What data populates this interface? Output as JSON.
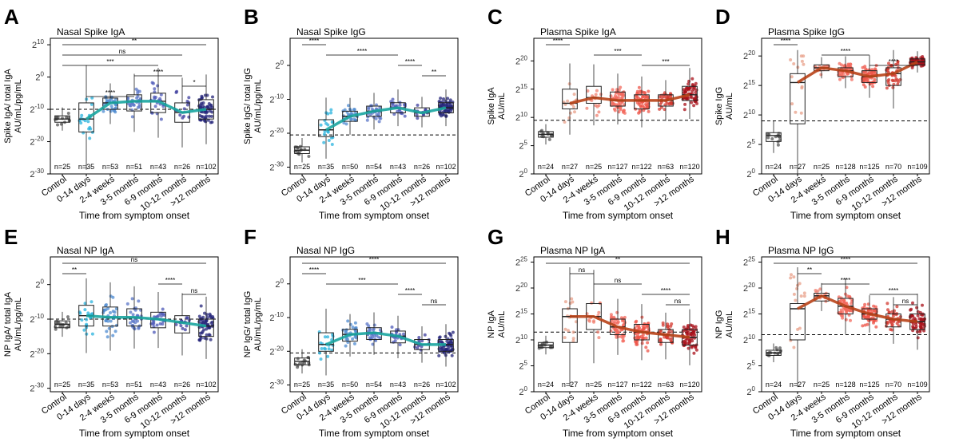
{
  "categories": [
    "Control",
    "0-14 days",
    "2-4 weeks",
    "3-5 months",
    "6-9 months",
    "10-12 months",
    ">12 months"
  ],
  "xlabel": "Time from symptom onset",
  "colors": {
    "control": "#555555",
    "blue": [
      "#555555",
      "#29b3dd",
      "#4f8bd0",
      "#5a75c7",
      "#4d5ab8",
      "#3d3e9e",
      "#24247a"
    ],
    "red": [
      "#555555",
      "#e8a08a",
      "#f08070",
      "#f36a5e",
      "#ee5448",
      "#d33a30",
      "#a8101a"
    ],
    "blue_trend": "#1aa5a0",
    "red_trend": "#b84318"
  },
  "chart_data": [
    {
      "type": "box",
      "panel_letter": "A",
      "title": "Nasal Spike IgA",
      "ylabel_lines": [
        "Spike IgA/ total IgA",
        "AU/mL/pg/mL"
      ],
      "ylim": [
        -30,
        12
      ],
      "yticks": [
        10,
        0,
        -10,
        -20,
        -30
      ],
      "tick_base": "2",
      "palette": "blue",
      "threshold": -10,
      "medians": [
        -13,
        -13,
        -8,
        -7.5,
        -7.5,
        -11,
        -10
      ],
      "q1": [
        -14,
        -17,
        -10,
        -10.5,
        -11,
        -14,
        -13
      ],
      "q3": [
        -12,
        -8,
        -6.5,
        -5.5,
        -5,
        -8,
        -7
      ],
      "ns": [
        "n=25",
        "n=35",
        "n=53",
        "n=51",
        "n=43",
        "n=26",
        "n=102"
      ],
      "brackets": [
        {
          "from": 0,
          "to": 6,
          "label": "**"
        },
        {
          "from": 0,
          "to": 5,
          "label": "ns"
        },
        {
          "from": 0,
          "to": 4,
          "label": "***"
        },
        {
          "from": 3,
          "to": 5,
          "label": "****"
        },
        {
          "from": 5,
          "to": 6,
          "label": "*"
        },
        {
          "from": 1,
          "to": 3,
          "label": "****"
        }
      ]
    },
    {
      "type": "box",
      "panel_letter": "B",
      "title": "Nasal Spike IgG",
      "ylabel_lines": [
        "Spike IgG/ total IgG",
        "AU/mL/pg/mL"
      ],
      "ylim": [
        -32,
        8
      ],
      "yticks": [
        0,
        -10,
        -20,
        -30
      ],
      "tick_base": "2",
      "palette": "blue",
      "threshold": -20.5,
      "medians": [
        -25,
        -19,
        -15,
        -13.5,
        -12.5,
        -14,
        -12.5
      ],
      "q1": [
        -26,
        -21,
        -16.5,
        -15,
        -14,
        -15,
        -14
      ],
      "q3": [
        -24,
        -16,
        -13.5,
        -12,
        -11,
        -12.5,
        -11
      ],
      "ns": [
        "n=25",
        "n=35",
        "n=50",
        "n=54",
        "n=43",
        "n=26",
        "n=102"
      ],
      "brackets": [
        {
          "from": 0,
          "to": 1,
          "label": "****"
        },
        {
          "from": 1,
          "to": 4,
          "label": "****"
        },
        {
          "from": 4,
          "to": 5,
          "label": "****"
        },
        {
          "from": 5,
          "to": 6,
          "label": "**"
        }
      ]
    },
    {
      "type": "box",
      "panel_letter": "C",
      "title": "Plasma Spike IgA",
      "ylabel_lines": [
        "Spike IgA",
        "AU/mL"
      ],
      "ylim": [
        0,
        24
      ],
      "yticks": [
        20,
        15,
        10,
        5,
        0
      ],
      "tick_base": "2",
      "palette": "red",
      "threshold": 9.5,
      "medians": [
        7,
        12.5,
        13.5,
        13,
        13,
        13,
        14
      ],
      "q1": [
        6.5,
        11.5,
        12.5,
        12,
        11.5,
        12,
        13
      ],
      "q3": [
        7.5,
        15,
        15.5,
        14.5,
        14,
        14,
        15.5
      ],
      "ns": [
        "n=24",
        "n=27",
        "n=25",
        "n=127",
        "n=122",
        "n=63",
        "n=120"
      ],
      "brackets": [
        {
          "from": 0,
          "to": 1,
          "label": "****"
        },
        {
          "from": 2,
          "to": 4,
          "label": "***"
        },
        {
          "from": 4,
          "to": 6,
          "label": "***"
        }
      ]
    },
    {
      "type": "box",
      "panel_letter": "D",
      "title": "Plasma Spike IgG",
      "ylabel_lines": [
        "Spike IgG",
        "AU/mL"
      ],
      "ylim": [
        0,
        23
      ],
      "yticks": [
        20,
        15,
        10,
        5,
        0
      ],
      "tick_base": "2",
      "palette": "red",
      "threshold": 9,
      "medians": [
        6.5,
        15.5,
        18,
        17.5,
        16.5,
        17,
        19
      ],
      "q1": [
        5.5,
        8.5,
        17.5,
        16.5,
        15.5,
        15,
        18.5
      ],
      "q3": [
        7,
        17,
        18.5,
        18,
        17.5,
        18,
        19.5
      ],
      "ns": [
        "n=24",
        "n=27",
        "n=25",
        "n=128",
        "n=125",
        "n=70",
        "n=109"
      ],
      "brackets": [
        {
          "from": 0,
          "to": 1,
          "label": "****"
        },
        {
          "from": 2,
          "to": 4,
          "label": "****"
        },
        {
          "from": 4,
          "to": 6,
          "label": "****"
        }
      ]
    },
    {
      "type": "box",
      "panel_letter": "E",
      "title": "Nasal NP IgA",
      "ylabel_lines": [
        "NP IgA/ total IgA",
        "AU/mL/pg/mL"
      ],
      "ylim": [
        -31,
        8
      ],
      "yticks": [
        0,
        -10,
        -20,
        -30
      ],
      "tick_base": "2",
      "palette": "blue",
      "threshold": -10,
      "medians": [
        -11.5,
        -9,
        -9.5,
        -9.5,
        -10,
        -11,
        -12
      ],
      "q1": [
        -12.5,
        -12,
        -12,
        -12,
        -12.5,
        -14,
        -15
      ],
      "q3": [
        -10.5,
        -6,
        -6.5,
        -7,
        -8,
        -9,
        -10
      ],
      "ns": [
        "n=25",
        "n=35",
        "n=53",
        "n=51",
        "n=43",
        "n=26",
        "n=102"
      ],
      "brackets": [
        {
          "from": 0,
          "to": 6,
          "label": "ns"
        },
        {
          "from": 0,
          "to": 1,
          "label": "**"
        },
        {
          "from": 4,
          "to": 5,
          "label": "****"
        },
        {
          "from": 5,
          "to": 6,
          "label": "ns"
        }
      ]
    },
    {
      "type": "box",
      "panel_letter": "F",
      "title": "Nasal NP IgG",
      "ylabel_lines": [
        "NP IgG/ total IgG",
        "AU/mL/pg/mL"
      ],
      "ylim": [
        -32,
        8
      ],
      "yticks": [
        0,
        -10,
        -20,
        -30
      ],
      "tick_base": "2",
      "palette": "blue",
      "threshold": -20.5,
      "medians": [
        -23,
        -18,
        -15,
        -14.5,
        -15.5,
        -18,
        -18
      ],
      "q1": [
        -24,
        -20,
        -17,
        -16.5,
        -17.5,
        -19.5,
        -20
      ],
      "q3": [
        -22,
        -14.5,
        -13.5,
        -13,
        -14,
        -16.5,
        -16.5
      ],
      "ns": [
        "n=25",
        "n=35",
        "n=50",
        "n=54",
        "n=43",
        "n=26",
        "n=102"
      ],
      "brackets": [
        {
          "from": 0,
          "to": 6,
          "label": "****"
        },
        {
          "from": 0,
          "to": 1,
          "label": "****"
        },
        {
          "from": 1,
          "to": 4,
          "label": "***"
        },
        {
          "from": 4,
          "to": 5,
          "label": "****"
        },
        {
          "from": 5,
          "to": 6,
          "label": "ns"
        }
      ]
    },
    {
      "type": "box",
      "panel_letter": "G",
      "title": "Plasma NP IgA",
      "ylabel_lines": [
        "NP IgA",
        "AU/mL"
      ],
      "ylim": [
        0,
        26
      ],
      "yticks": [
        25,
        20,
        15,
        10,
        5,
        0
      ],
      "tick_base": "2",
      "palette": "red",
      "threshold": 11.5,
      "medians": [
        9,
        14.5,
        14.5,
        12.5,
        11.5,
        11,
        10.5
      ],
      "q1": [
        8.5,
        9.5,
        12,
        11,
        10,
        9.5,
        9
      ],
      "q3": [
        9.5,
        16,
        17,
        14,
        13,
        12,
        12
      ],
      "ns": [
        "n=24",
        "n=27",
        "n=25",
        "n=127",
        "n=122",
        "n=63",
        "n=120"
      ],
      "brackets": [
        {
          "from": 0,
          "to": 6,
          "label": "**"
        },
        {
          "from": 1,
          "to": 2,
          "label": "ns"
        },
        {
          "from": 2,
          "to": 4,
          "label": "ns"
        },
        {
          "from": 4,
          "to": 6,
          "label": "****"
        },
        {
          "from": 5,
          "to": 6,
          "label": "ns"
        }
      ]
    },
    {
      "type": "box",
      "panel_letter": "H",
      "title": "Plasma NP IgG",
      "ylabel_lines": [
        "NP IgG",
        "AU/mL"
      ],
      "ylim": [
        0,
        26
      ],
      "yticks": [
        25,
        20,
        15,
        10,
        5,
        0
      ],
      "tick_base": "2",
      "palette": "red",
      "threshold": 11,
      "medians": [
        7.5,
        16,
        18.5,
        16.5,
        15,
        14,
        13.5
      ],
      "q1": [
        7,
        10,
        17.5,
        15,
        14,
        12.5,
        12
      ],
      "q3": [
        8,
        17,
        19,
        18,
        16,
        15,
        15
      ],
      "ns": [
        "n=24",
        "n=27",
        "n=25",
        "n=128",
        "n=125",
        "n=70",
        "n=109"
      ],
      "brackets": [
        {
          "from": 0,
          "to": 6,
          "label": "****"
        },
        {
          "from": 1,
          "to": 2,
          "label": "**"
        },
        {
          "from": 2,
          "to": 4,
          "label": "****"
        },
        {
          "from": 4,
          "to": 6,
          "label": "****"
        },
        {
          "from": 5,
          "to": 6,
          "label": "ns"
        }
      ]
    }
  ]
}
